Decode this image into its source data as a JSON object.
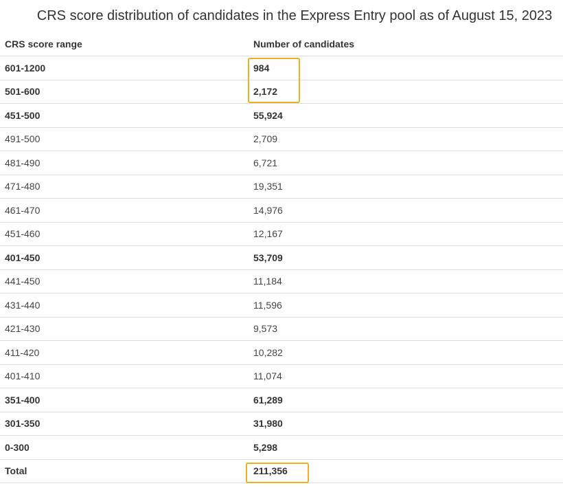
{
  "title": "CRS score distribution of candidates in the Express Entry pool as of August 15, 2023",
  "columns": {
    "range": "CRS score range",
    "count": "Number of candidates"
  },
  "rows": [
    {
      "range": "601-1200",
      "count": "984",
      "bold": true,
      "highlight": true
    },
    {
      "range": "501-600",
      "count": "2,172",
      "bold": true,
      "highlight": true
    },
    {
      "range": "451-500",
      "count": "55,924",
      "bold": true
    },
    {
      "range": "491-500",
      "count": "2,709",
      "bold": false
    },
    {
      "range": "481-490",
      "count": "6,721",
      "bold": false
    },
    {
      "range": "471-480",
      "count": "19,351",
      "bold": false
    },
    {
      "range": "461-470",
      "count": "14,976",
      "bold": false
    },
    {
      "range": "451-460",
      "count": "12,167",
      "bold": false
    },
    {
      "range": "401-450",
      "count": "53,709",
      "bold": true
    },
    {
      "range": "441-450",
      "count": "11,184",
      "bold": false
    },
    {
      "range": "431-440",
      "count": "11,596",
      "bold": false
    },
    {
      "range": "421-430",
      "count": "9,573",
      "bold": false
    },
    {
      "range": "411-420",
      "count": "10,282",
      "bold": false
    },
    {
      "range": "401-410",
      "count": "11,074",
      "bold": false
    },
    {
      "range": "351-400",
      "count": "61,289",
      "bold": true
    },
    {
      "range": "301-350",
      "count": "31,980",
      "bold": true
    },
    {
      "range": "0-300",
      "count": "5,298",
      "bold": true
    },
    {
      "range": "Total",
      "count": "211,356",
      "bold": true,
      "highlight": true
    }
  ],
  "highlight_color": "#f2b01e"
}
